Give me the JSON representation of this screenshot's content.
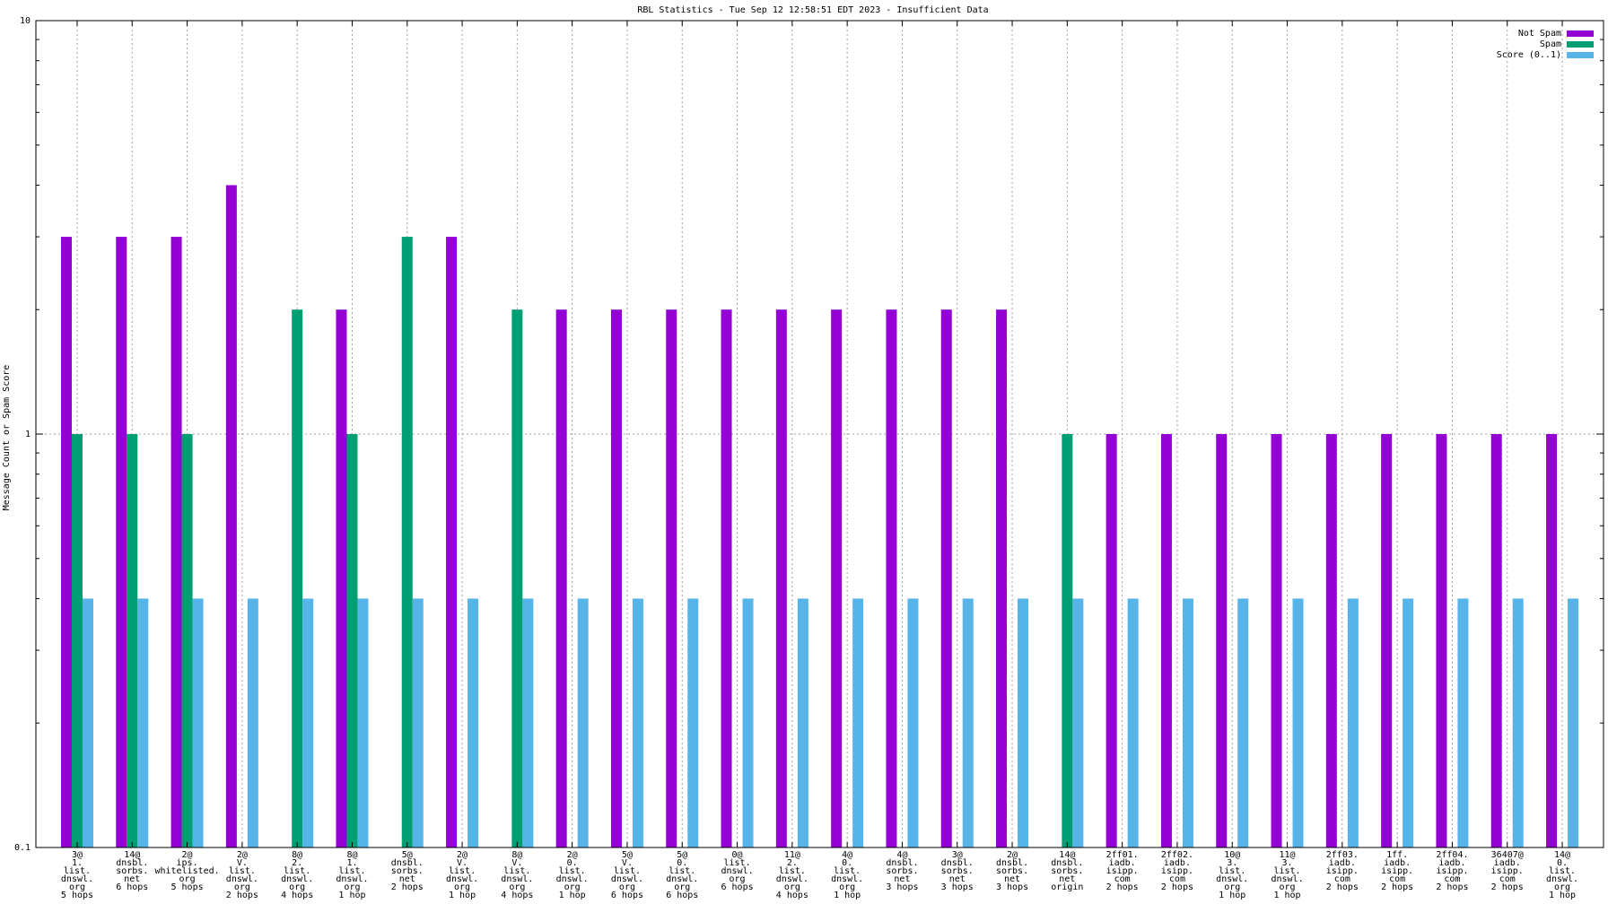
{
  "chart_data": {
    "type": "bar",
    "title": "RBL Statistics - Tue Sep 12 12:58:51 EDT 2023 - Insufficient Data",
    "xlabel": "",
    "ylabel": "Message Count or Spam Score",
    "yscale": "log",
    "ylim": [
      0.1,
      10
    ],
    "y_ticks": [
      "0.1",
      "1",
      "10"
    ],
    "grid": true,
    "legend_position": "top-right",
    "categories": [
      [
        "3@",
        "1.",
        "list.",
        "dnswl.",
        "org",
        "5 hops"
      ],
      [
        "14@",
        "dnsbl.",
        "sorbs.",
        "net",
        "6 hops"
      ],
      [
        "2@",
        "ips.",
        "whitelisted.",
        "org",
        "5 hops"
      ],
      [
        "2@",
        "V.",
        "list.",
        "dnswl.",
        "org",
        "2 hops"
      ],
      [
        "8@",
        "2.",
        "list.",
        "dnswl.",
        "org",
        "4 hops"
      ],
      [
        "8@",
        "1.",
        "list.",
        "dnswl.",
        "org",
        "1 hop"
      ],
      [
        "5@",
        "dnsbl.",
        "sorbs.",
        "net",
        "2 hops"
      ],
      [
        "2@",
        "V.",
        "list.",
        "dnswl.",
        "org",
        "1 hop"
      ],
      [
        "8@",
        "V.",
        "list.",
        "dnswl.",
        "org",
        "4 hops"
      ],
      [
        "2@",
        "0.",
        "list.",
        "dnswl.",
        "org",
        "1 hop"
      ],
      [
        "5@",
        "V.",
        "list.",
        "dnswl.",
        "org",
        "6 hops"
      ],
      [
        "5@",
        "0.",
        "list.",
        "dnswl.",
        "org",
        "6 hops"
      ],
      [
        "0@",
        "list.",
        "dnswl.",
        "org",
        "6 hops"
      ],
      [
        "11@",
        "2.",
        "list.",
        "dnswl.",
        "org",
        "4 hops"
      ],
      [
        "4@",
        "0.",
        "list.",
        "dnswl.",
        "org",
        "1 hop"
      ],
      [
        "4@",
        "dnsbl.",
        "sorbs.",
        "net",
        "3 hops"
      ],
      [
        "3@",
        "dnsbl.",
        "sorbs.",
        "net",
        "3 hops"
      ],
      [
        "2@",
        "dnsbl.",
        "sorbs.",
        "net",
        "3 hops"
      ],
      [
        "14@",
        "dnsbl.",
        "sorbs.",
        "net",
        "origin"
      ],
      [
        "2ff01.",
        "iadb.",
        "isipp.",
        "com",
        "2 hops"
      ],
      [
        "2ff02.",
        "iadb.",
        "isipp.",
        "com",
        "2 hops"
      ],
      [
        "10@",
        "3.",
        "list.",
        "dnswl.",
        "org",
        "1 hop"
      ],
      [
        "11@",
        "3.",
        "list.",
        "dnswl.",
        "org",
        "1 hop"
      ],
      [
        "2ff03.",
        "iadb.",
        "isipp.",
        "com",
        "2 hops"
      ],
      [
        "1ff.",
        "iadb.",
        "isipp.",
        "com",
        "2 hops"
      ],
      [
        "2ff04.",
        "iadb.",
        "isipp.",
        "com",
        "2 hops"
      ],
      [
        "36407@",
        "iadb.",
        "isipp.",
        "com",
        "2 hops"
      ],
      [
        "14@",
        "0.",
        "list.",
        "dnswl.",
        "org",
        "1 hop"
      ]
    ],
    "series": [
      {
        "name": "Not Spam",
        "color": "#9400d3",
        "values": [
          3,
          3,
          3,
          4,
          null,
          2,
          null,
          3,
          null,
          2,
          2,
          2,
          2,
          2,
          2,
          2,
          2,
          2,
          null,
          1,
          1,
          1,
          1,
          1,
          1,
          1,
          1,
          1
        ]
      },
      {
        "name": "Spam",
        "color": "#009e73",
        "values": [
          1,
          1,
          1,
          null,
          2,
          1,
          3,
          null,
          2,
          null,
          null,
          null,
          null,
          null,
          null,
          null,
          null,
          null,
          1,
          null,
          null,
          null,
          null,
          null,
          null,
          null,
          null,
          null
        ]
      },
      {
        "name": "Score (0..1)",
        "color": "#56b4e9",
        "values": [
          0.4,
          0.4,
          0.4,
          0.4,
          0.4,
          0.4,
          0.4,
          0.4,
          0.4,
          0.4,
          0.4,
          0.4,
          0.4,
          0.4,
          0.4,
          0.4,
          0.4,
          0.4,
          0.4,
          0.4,
          0.4,
          0.4,
          0.4,
          0.4,
          0.4,
          0.4,
          0.4,
          0.4
        ]
      }
    ]
  }
}
